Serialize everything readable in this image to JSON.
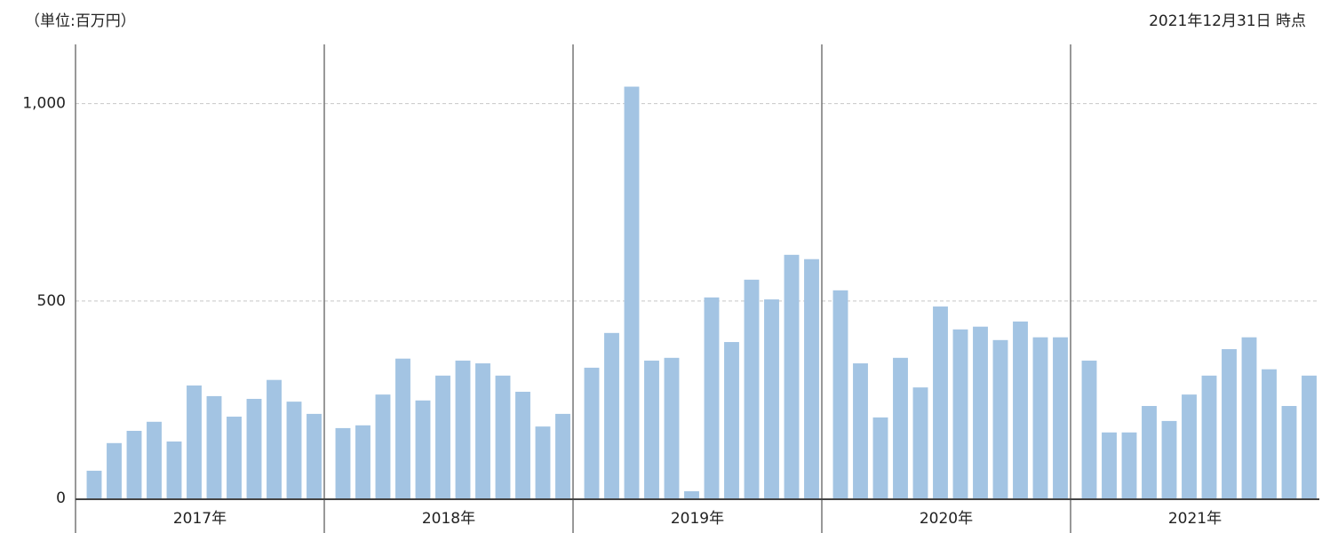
{
  "chart_data": {
    "type": "bar",
    "unit_label": "（単位:百万円）",
    "as_of": "2021年12月31日 時点",
    "color": "#a3c4e3",
    "grid": true,
    "ylim": [
      0,
      1150
    ],
    "yticks": [
      0,
      500,
      {
        "value": 1000,
        "label": "1,000"
      }
    ],
    "groups": [
      {
        "name": "2017年",
        "values": [
          70,
          140,
          171,
          194,
          144,
          286,
          259,
          207,
          252,
          300,
          245,
          214
        ]
      },
      {
        "name": "2018年",
        "values": [
          178,
          185,
          263,
          354,
          248,
          311,
          349,
          342,
          311,
          270,
          182,
          214
        ]
      },
      {
        "name": "2019年",
        "values": [
          331,
          419,
          1043,
          349,
          356,
          18,
          509,
          396,
          554,
          504,
          617,
          606
        ]
      },
      {
        "name": "2020年",
        "values": [
          527,
          342,
          205,
          356,
          281,
          486,
          428,
          435,
          401,
          448,
          408,
          408
        ]
      },
      {
        "name": "2021年",
        "values": [
          349,
          167,
          167,
          234,
          196,
          263,
          311,
          378,
          408,
          327,
          234,
          311
        ]
      }
    ]
  }
}
